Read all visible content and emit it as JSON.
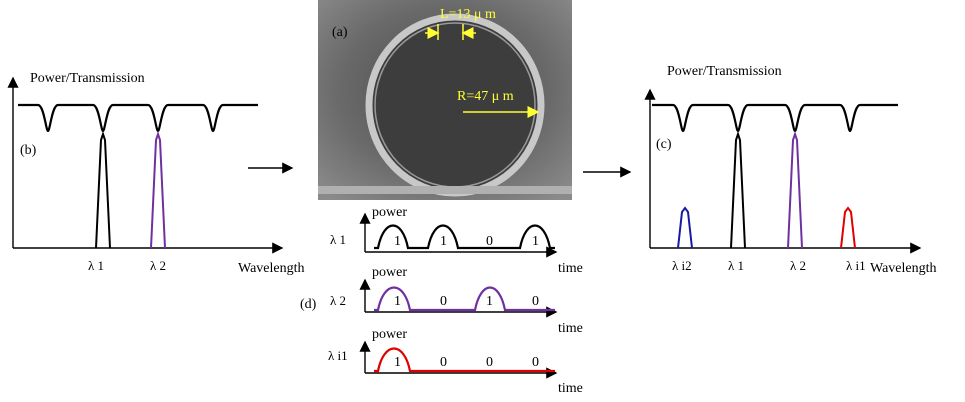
{
  "panel_a": {
    "label": "(a)",
    "length_label": "L=13 μ m",
    "radius_label": "R=47 μ m"
  },
  "panel_b": {
    "label": "(b)",
    "y_axis": "Power/Transmission",
    "x_axis": "Wavelength",
    "peaks": [
      "λ 1",
      "λ 2"
    ]
  },
  "panel_c": {
    "label": "(c)",
    "y_axis": "Power/Transmission",
    "x_axis": "Wavelength",
    "peaks": [
      "λ i2",
      "λ 1",
      "λ 2",
      "λ i1"
    ]
  },
  "panel_d": {
    "label": "(d)",
    "signals": [
      {
        "channel": "λ 1",
        "y_axis": "power",
        "x_axis": "time",
        "bits": [
          "1",
          "1",
          "0",
          "1"
        ]
      },
      {
        "channel": "λ 2",
        "y_axis": "power",
        "x_axis": "time",
        "bits": [
          "1",
          "0",
          "1",
          "0"
        ]
      },
      {
        "channel": "λ i1",
        "y_axis": "power",
        "x_axis": "time",
        "bits": [
          "1",
          "0",
          "0",
          "0"
        ]
      }
    ]
  }
}
